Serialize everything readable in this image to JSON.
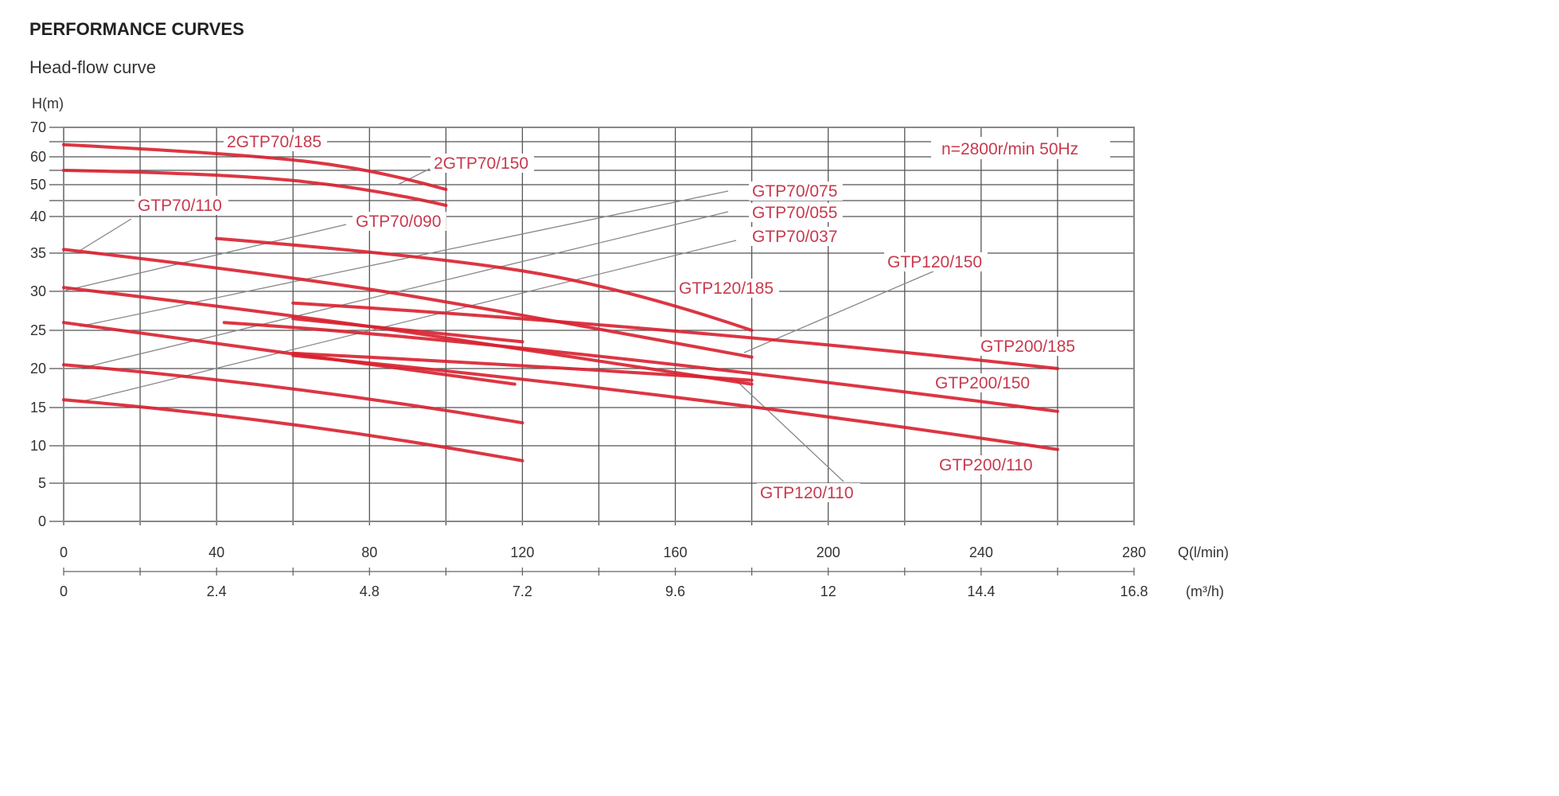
{
  "title": "PERFORMANCE CURVES",
  "subtitle": "Head-flow curve",
  "colors": {
    "curve": "#d8202f",
    "label": "#c73a4e",
    "grid": "#555555",
    "leader": "#888888"
  },
  "chart_data": {
    "type": "line",
    "title": "Head-flow curve",
    "ylabel": "H(m)",
    "xlabel": "Q(l/min)",
    "x2label": "(m³/h)",
    "annotation": "n=2800r/min  50Hz",
    "xlim": [
      0,
      280
    ],
    "ylim": [
      0,
      70
    ],
    "y_scale": "non-uniform (5 m steps compressed above 35)",
    "grid": true,
    "x_ticks": [
      "0",
      "40",
      "80",
      "120",
      "160",
      "200",
      "240",
      "280"
    ],
    "x2_ticks": [
      "0",
      "2.4",
      "4.8",
      "7.2",
      "9.6",
      "12",
      "14.4",
      "16.8"
    ],
    "y_ticks": [
      "0",
      "5",
      "10",
      "15",
      "20",
      "25",
      "30",
      "35",
      "40",
      "50",
      "60",
      "70"
    ],
    "series": [
      {
        "name": "2GTP70/185",
        "points": [
          [
            0,
            64
          ],
          [
            40,
            61.5
          ],
          [
            80,
            56
          ],
          [
            100,
            48.5
          ]
        ]
      },
      {
        "name": "2GTP70/150",
        "points": [
          [
            0,
            55
          ],
          [
            40,
            54
          ],
          [
            80,
            49
          ],
          [
            100,
            43.5
          ]
        ]
      },
      {
        "name": "GTP70/110",
        "points": [
          [
            0,
            35.5
          ],
          [
            60,
            32
          ],
          [
            120,
            27
          ],
          [
            180,
            21.5
          ]
        ]
      },
      {
        "name": "GTP70/090",
        "points": [
          [
            0,
            30.5
          ],
          [
            60,
            27
          ],
          [
            120,
            22.5
          ],
          [
            180,
            18
          ]
        ]
      },
      {
        "name": "GTP70/075",
        "points": [
          [
            0,
            26
          ],
          [
            60,
            22
          ],
          [
            118,
            18
          ]
        ]
      },
      {
        "name": "GTP70/055",
        "points": [
          [
            0,
            20.5
          ],
          [
            60,
            18
          ],
          [
            120,
            13
          ]
        ]
      },
      {
        "name": "GTP70/037",
        "points": [
          [
            0,
            16
          ],
          [
            60,
            13.5
          ],
          [
            120,
            8
          ]
        ]
      },
      {
        "name": "GTP120/185",
        "points": [
          [
            40,
            37
          ],
          [
            100,
            34.5
          ],
          [
            150,
            30
          ],
          [
            180,
            25
          ]
        ]
      },
      {
        "name": "GTP120/150",
        "points": [
          [
            60,
            26.5
          ],
          [
            90,
            25
          ],
          [
            120,
            23.5
          ]
        ]
      },
      {
        "name": "GTP120/110",
        "points": [
          [
            60,
            22
          ],
          [
            120,
            20.5
          ],
          [
            180,
            18.5
          ]
        ]
      },
      {
        "name": "GTP200/185",
        "points": [
          [
            60,
            28.5
          ],
          [
            160,
            25.5
          ],
          [
            260,
            20
          ]
        ]
      },
      {
        "name": "GTP200/150",
        "points": [
          [
            42,
            26
          ],
          [
            120,
            23.5
          ],
          [
            260,
            14.5
          ]
        ]
      },
      {
        "name": "GTP200/110",
        "points": [
          [
            60,
            21.7
          ],
          [
            160,
            17
          ],
          [
            260,
            9.5
          ]
        ]
      }
    ]
  }
}
